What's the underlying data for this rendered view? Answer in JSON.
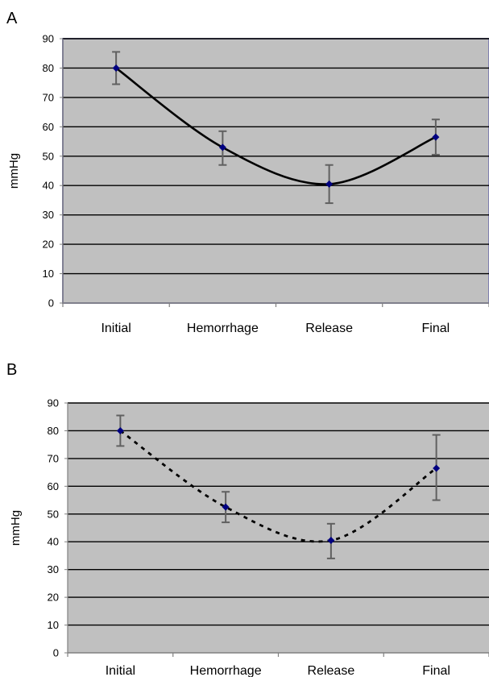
{
  "panels": [
    {
      "letter": "A",
      "chart_data": {
        "type": "line",
        "title": "",
        "xlabel": "",
        "ylabel": "mmHg",
        "categories": [
          "Initial",
          "Hemorrhage",
          "Release",
          "Final"
        ],
        "series": [
          {
            "values": [
              80,
              53,
              40.5,
              56.5
            ],
            "error_low": [
              74.5,
              47,
              34,
              50.5
            ],
            "error_high": [
              85.5,
              58.5,
              47,
              62.5
            ],
            "line_style": "solid"
          }
        ],
        "ylim": [
          0,
          90
        ],
        "yticks": [
          0,
          10,
          20,
          30,
          40,
          50,
          60,
          70,
          80,
          90
        ],
        "grid": true,
        "legend": "none",
        "colors": {
          "plot_bg": "#c0c0c0",
          "grid": "#000000",
          "line": "#000000",
          "marker": "#000080",
          "error_bar": "#606060",
          "frame": "#8080b0"
        }
      }
    },
    {
      "letter": "B",
      "chart_data": {
        "type": "line",
        "title": "",
        "xlabel": "",
        "ylabel": "mmHg",
        "categories": [
          "Initial",
          "Hemorrhage",
          "Release",
          "Final"
        ],
        "series": [
          {
            "values": [
              80,
              52.5,
              40.5,
              66.5
            ],
            "error_low": [
              74.5,
              47,
              34,
              55
            ],
            "error_high": [
              85.5,
              58,
              46.5,
              78.5
            ],
            "line_style": "dotted"
          }
        ],
        "ylim": [
          0,
          90
        ],
        "yticks": [
          0,
          10,
          20,
          30,
          40,
          50,
          60,
          70,
          80,
          90
        ],
        "grid": true,
        "legend": "none",
        "colors": {
          "plot_bg": "#c0c0c0",
          "grid": "#000000",
          "line": "#000000",
          "marker": "#000080",
          "error_bar": "#606060",
          "frame": "#8080b0"
        }
      }
    }
  ]
}
